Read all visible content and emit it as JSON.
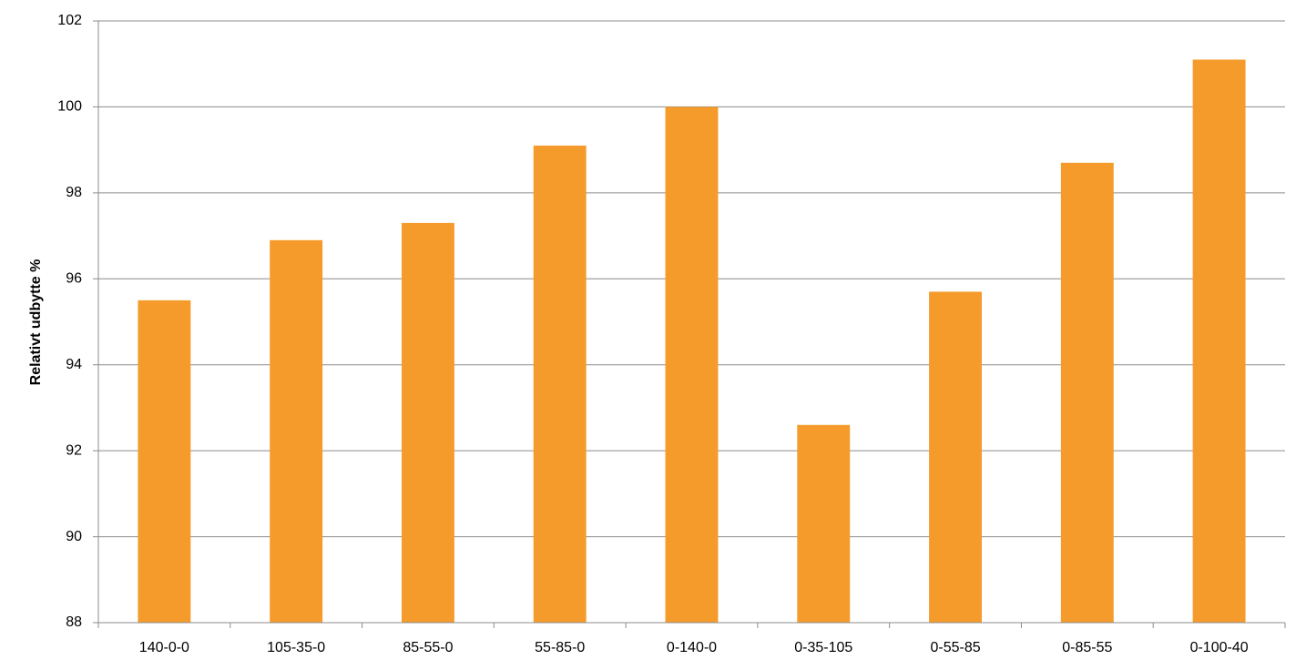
{
  "chart_data": {
    "type": "bar",
    "y_label": "Relativt udbytte %",
    "categories": [
      "140-0-0",
      "105-35-0",
      "85-55-0",
      "55-85-0",
      "0-140-0",
      "0-35-105",
      "0-55-85",
      "0-85-55",
      "0-100-40"
    ],
    "values": [
      95.5,
      96.9,
      97.3,
      99.1,
      100,
      92.6,
      95.7,
      98.7,
      101.1
    ],
    "color": "#f59b2b",
    "ylim": [
      88,
      102
    ],
    "yticks": [
      88,
      90,
      92,
      94,
      96,
      98,
      100,
      102
    ],
    "grid": true
  }
}
